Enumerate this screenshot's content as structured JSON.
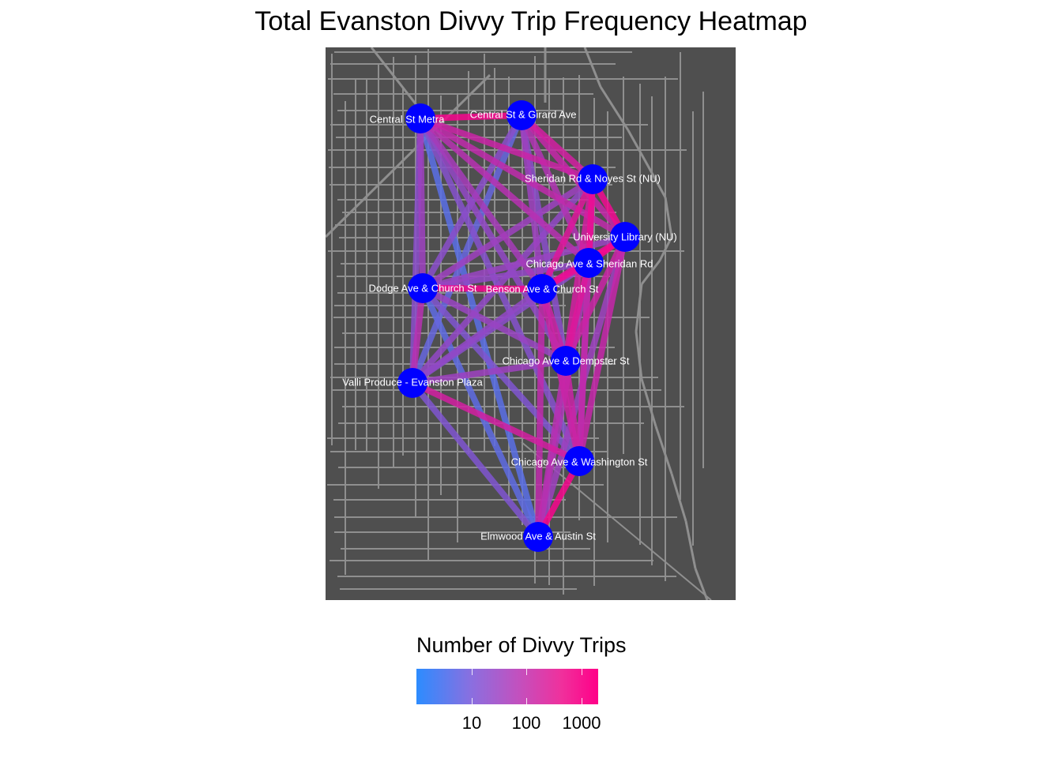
{
  "title": "Total Evanston Divvy Trip Frequency Heatmap",
  "colors": {
    "map_background": "#4f4f4f",
    "streets": "#8f8f8f",
    "station_fill": "#0000ff",
    "label_text": "#ffffff",
    "low_trips": "#2c8cff",
    "high_trips": "#ff0088"
  },
  "legend": {
    "title": "Number of Divvy Trips",
    "scale": "log10",
    "tick_labels": [
      "10",
      "100",
      "1000"
    ]
  },
  "stations": [
    {
      "id": "central_metra",
      "name": "Central St Metra"
    },
    {
      "id": "central_girard",
      "name": "Central St & Girard Ave"
    },
    {
      "id": "sheridan_noyes",
      "name": "Sheridan Rd & Noyes St (NU)"
    },
    {
      "id": "univ_library",
      "name": "University Library (NU)"
    },
    {
      "id": "chicago_sheridan",
      "name": "Chicago Ave & Sheridan Rd"
    },
    {
      "id": "dodge_church",
      "name": "Dodge Ave & Church St"
    },
    {
      "id": "benson_church",
      "name": "Benson Ave & Church St"
    },
    {
      "id": "chicago_dempster",
      "name": "Chicago Ave & Dempster St"
    },
    {
      "id": "valli",
      "name": "Valli Produce - Evanston Plaza"
    },
    {
      "id": "chicago_washington",
      "name": "Chicago Ave & Washington St"
    },
    {
      "id": "elmwood_austin",
      "name": "Elmwood Ave & Austin St"
    }
  ],
  "chart_data": {
    "type": "network_heatmap",
    "metric": "Number of Divvy Trips",
    "scale": "log10",
    "routes": [
      {
        "from": "central_metra",
        "to": "central_girard",
        "trips": 1500
      },
      {
        "from": "central_metra",
        "to": "sheridan_noyes",
        "trips": 300
      },
      {
        "from": "central_metra",
        "to": "univ_library",
        "trips": 200
      },
      {
        "from": "central_metra",
        "to": "chicago_sheridan",
        "trips": 150
      },
      {
        "from": "central_metra",
        "to": "benson_church",
        "trips": 80
      },
      {
        "from": "central_metra",
        "to": "dodge_church",
        "trips": 60
      },
      {
        "from": "central_metra",
        "to": "chicago_dempster",
        "trips": 40
      },
      {
        "from": "central_metra",
        "to": "valli",
        "trips": 30
      },
      {
        "from": "central_metra",
        "to": "chicago_washington",
        "trips": 25
      },
      {
        "from": "central_metra",
        "to": "elmwood_austin",
        "trips": 5
      },
      {
        "from": "central_girard",
        "to": "sheridan_noyes",
        "trips": 400
      },
      {
        "from": "central_girard",
        "to": "univ_library",
        "trips": 250
      },
      {
        "from": "central_girard",
        "to": "chicago_sheridan",
        "trips": 120
      },
      {
        "from": "central_girard",
        "to": "benson_church",
        "trips": 60
      },
      {
        "from": "central_girard",
        "to": "dodge_church",
        "trips": 30
      },
      {
        "from": "central_girard",
        "to": "chicago_dempster",
        "trips": 30
      },
      {
        "from": "central_girard",
        "to": "valli",
        "trips": 8
      },
      {
        "from": "sheridan_noyes",
        "to": "univ_library",
        "trips": 1200
      },
      {
        "from": "sheridan_noyes",
        "to": "chicago_sheridan",
        "trips": 1000
      },
      {
        "from": "sheridan_noyes",
        "to": "benson_church",
        "trips": 600
      },
      {
        "from": "sheridan_noyes",
        "to": "dodge_church",
        "trips": 60
      },
      {
        "from": "sheridan_noyes",
        "to": "chicago_dempster",
        "trips": 400
      },
      {
        "from": "sheridan_noyes",
        "to": "chicago_washington",
        "trips": 150
      },
      {
        "from": "sheridan_noyes",
        "to": "valli",
        "trips": 40
      },
      {
        "from": "univ_library",
        "to": "chicago_sheridan",
        "trips": 1300
      },
      {
        "from": "univ_library",
        "to": "benson_church",
        "trips": 800
      },
      {
        "from": "univ_library",
        "to": "dodge_church",
        "trips": 50
      },
      {
        "from": "univ_library",
        "to": "chicago_dempster",
        "trips": 300
      },
      {
        "from": "univ_library",
        "to": "chicago_washington",
        "trips": 250
      },
      {
        "from": "univ_library",
        "to": "elmwood_austin",
        "trips": 60
      },
      {
        "from": "chicago_sheridan",
        "to": "benson_church",
        "trips": 900
      },
      {
        "from": "chicago_sheridan",
        "to": "dodge_church",
        "trips": 40
      },
      {
        "from": "chicago_sheridan",
        "to": "chicago_dempster",
        "trips": 600
      },
      {
        "from": "chicago_sheridan",
        "to": "valli",
        "trips": 30
      },
      {
        "from": "chicago_sheridan",
        "to": "chicago_washington",
        "trips": 200
      },
      {
        "from": "chicago_sheridan",
        "to": "elmwood_austin",
        "trips": 100
      },
      {
        "from": "dodge_church",
        "to": "benson_church",
        "trips": 1500
      },
      {
        "from": "dodge_church",
        "to": "valli",
        "trips": 150
      },
      {
        "from": "dodge_church",
        "to": "chicago_dempster",
        "trips": 50
      },
      {
        "from": "dodge_church",
        "to": "chicago_washington",
        "trips": 20
      },
      {
        "from": "dodge_church",
        "to": "elmwood_austin",
        "trips": 6
      },
      {
        "from": "benson_church",
        "to": "chicago_dempster",
        "trips": 300
      },
      {
        "from": "benson_church",
        "to": "valli",
        "trips": 40
      },
      {
        "from": "benson_church",
        "to": "chicago_washington",
        "trips": 300
      },
      {
        "from": "benson_church",
        "to": "elmwood_austin",
        "trips": 200
      },
      {
        "from": "chicago_dempster",
        "to": "valli",
        "trips": 60
      },
      {
        "from": "chicago_dempster",
        "to": "chicago_washington",
        "trips": 300
      },
      {
        "from": "chicago_dempster",
        "to": "elmwood_austin",
        "trips": 150
      },
      {
        "from": "valli",
        "to": "chicago_washington",
        "trips": 400
      },
      {
        "from": "valli",
        "to": "elmwood_austin",
        "trips": 20
      },
      {
        "from": "chicago_washington",
        "to": "elmwood_austin",
        "trips": 1500
      }
    ]
  }
}
